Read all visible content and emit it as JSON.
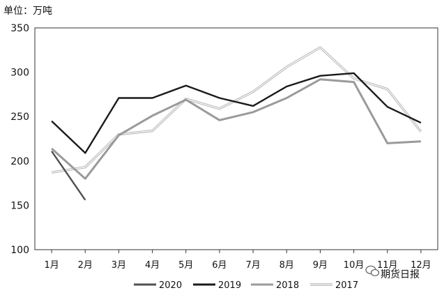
{
  "chart_data": {
    "type": "line",
    "unit_label": "单位：万吨",
    "categories": [
      "1月",
      "2月",
      "3月",
      "4月",
      "5月",
      "6月",
      "7月",
      "8月",
      "9月",
      "10月",
      "11月",
      "12月"
    ],
    "ylim": [
      100,
      350
    ],
    "yticks": [
      "100",
      "150",
      "200",
      "250",
      "300",
      "350"
    ],
    "grid": false,
    "legend_position": "bottom",
    "series": [
      {
        "name": "2020",
        "color": "#505050",
        "values": [
          211,
          156,
          null,
          null,
          null,
          null,
          null,
          null,
          null,
          null,
          null,
          null
        ]
      },
      {
        "name": "2019",
        "color": "#1a1a1a",
        "values": [
          245,
          209,
          271,
          271,
          285,
          271,
          262,
          284,
          296,
          299,
          261,
          243
        ]
      },
      {
        "name": "2018",
        "color": "#9a9a9a",
        "values": [
          214,
          180,
          229,
          251,
          269,
          246,
          255,
          271,
          292,
          289,
          220,
          222
        ]
      },
      {
        "name": "2017",
        "color": "#c8c8c8",
        "values": [
          187,
          193,
          230,
          234,
          270,
          259,
          278,
          306,
          328,
          293,
          281,
          233
        ]
      }
    ]
  },
  "watermark": {
    "text": "期货日报",
    "icon": "wechat-icon"
  }
}
